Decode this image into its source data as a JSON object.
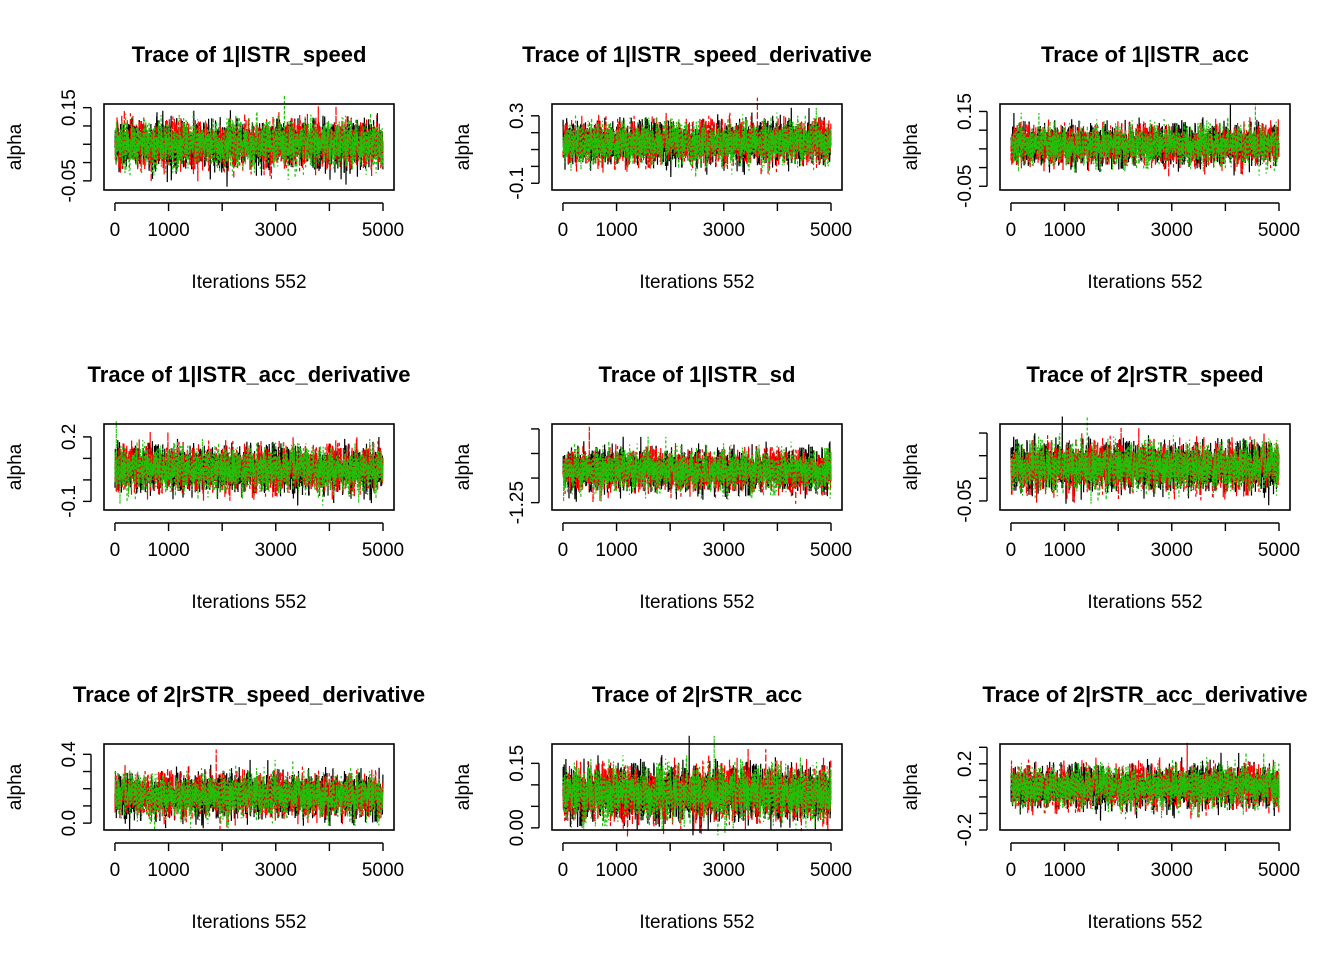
{
  "chart_data": [
    {
      "type": "line",
      "title": "Trace of 1|lSTR_speed",
      "xlabel": "Iterations 552",
      "ylabel": "alpha",
      "xlim": [
        1,
        5000
      ],
      "xticks": [
        0,
        1000,
        2000,
        3000,
        4000,
        5000
      ],
      "xticklabels": [
        "0",
        "1000",
        "",
        "3000",
        "",
        "5000"
      ],
      "ylim": [
        -0.075,
        0.16
      ],
      "yticks": [
        -0.05,
        0,
        0.05,
        0.1,
        0.15
      ],
      "yticklabels": [
        "-0.05",
        "",
        "",
        "",
        "0.15"
      ],
      "chains": 3,
      "mean": 0.05,
      "sd": 0.03
    },
    {
      "type": "line",
      "title": "Trace of 1|lSTR_speed_derivative",
      "xlabel": "Iterations 552",
      "ylabel": "alpha",
      "xlim": [
        1,
        5000
      ],
      "xticks": [
        0,
        1000,
        2000,
        3000,
        4000,
        5000
      ],
      "xticklabels": [
        "0",
        "1000",
        "",
        "3000",
        "",
        "5000"
      ],
      "ylim": [
        -0.14,
        0.37
      ],
      "yticks": [
        -0.1,
        0,
        0.1,
        0.2,
        0.3
      ],
      "yticklabels": [
        "-0.1",
        "",
        "",
        "",
        "0.3"
      ],
      "chains": 3,
      "mean": 0.14,
      "sd": 0.06
    },
    {
      "type": "line",
      "title": "Trace of 1|lSTR_acc",
      "xlabel": "Iterations 552",
      "ylabel": "alpha",
      "xlim": [
        1,
        5000
      ],
      "xticks": [
        0,
        1000,
        2000,
        3000,
        4000,
        5000
      ],
      "xticklabels": [
        "0",
        "1000",
        "",
        "3000",
        "",
        "5000"
      ],
      "ylim": [
        -0.06,
        0.17
      ],
      "yticks": [
        -0.05,
        0,
        0.05,
        0.1,
        0.15
      ],
      "yticklabels": [
        "-0.05",
        "",
        "",
        "",
        "0.15"
      ],
      "chains": 3,
      "mean": 0.06,
      "sd": 0.025
    },
    {
      "type": "line",
      "title": "Trace of 1|lSTR_acc_derivative",
      "xlabel": "Iterations 552",
      "ylabel": "alpha",
      "xlim": [
        1,
        5000
      ],
      "xticks": [
        0,
        1000,
        2000,
        3000,
        4000,
        5000
      ],
      "xticklabels": [
        "0",
        "1000",
        "",
        "3000",
        "",
        "5000"
      ],
      "ylim": [
        -0.14,
        0.26
      ],
      "yticks": [
        -0.1,
        0,
        0.1,
        0.2
      ],
      "yticklabels": [
        "-0.1",
        "",
        "",
        "0.2"
      ],
      "chains": 3,
      "mean": 0.05,
      "sd": 0.05
    },
    {
      "type": "line",
      "title": "Trace of 1|lSTR_sd",
      "xlabel": "Iterations 552",
      "ylabel": "alpha",
      "xlim": [
        1,
        5000
      ],
      "xticks": [
        0,
        1000,
        2000,
        3000,
        4000,
        5000
      ],
      "xticklabels": [
        "0",
        "1000",
        "",
        "3000",
        "",
        "5000"
      ],
      "ylim": [
        -1.28,
        -0.93
      ],
      "yticks": [
        -1.25,
        -1.15,
        -1.05,
        -0.95
      ],
      "yticklabels": [
        "-1.25",
        "",
        "",
        ""
      ],
      "chains": 3,
      "mean": -1.12,
      "sd": 0.04
    },
    {
      "type": "line",
      "title": "Trace of 2|rSTR_speed",
      "xlabel": "Iterations 552",
      "ylabel": "alpha",
      "xlim": [
        1,
        5000
      ],
      "xticks": [
        0,
        1000,
        2000,
        3000,
        4000,
        5000
      ],
      "xticklabels": [
        "0",
        "1000",
        "",
        "3000",
        "",
        "5000"
      ],
      "ylim": [
        -0.07,
        0.12
      ],
      "yticks": [
        -0.05,
        0,
        0.05,
        0.1
      ],
      "yticklabels": [
        "-0.05",
        "",
        "",
        ""
      ],
      "chains": 3,
      "mean": 0.025,
      "sd": 0.025
    },
    {
      "type": "line",
      "title": "Trace of 2|rSTR_speed_derivative",
      "xlabel": "Iterations 552",
      "ylabel": "alpha",
      "xlim": [
        1,
        5000
      ],
      "xticks": [
        0,
        1000,
        2000,
        3000,
        4000,
        5000
      ],
      "xticklabels": [
        "0",
        "1000",
        "",
        "3000",
        "",
        "5000"
      ],
      "ylim": [
        -0.04,
        0.46
      ],
      "yticks": [
        0,
        0.1,
        0.2,
        0.3,
        0.4
      ],
      "yticklabels": [
        "0.0",
        "",
        "",
        "",
        "0.4"
      ],
      "chains": 3,
      "mean": 0.16,
      "sd": 0.06
    },
    {
      "type": "line",
      "title": "Trace of 2|rSTR_acc",
      "xlabel": "Iterations 552",
      "ylabel": "alpha",
      "xlim": [
        1,
        5000
      ],
      "xticks": [
        0,
        1000,
        2000,
        3000,
        4000,
        5000
      ],
      "xticklabels": [
        "0",
        "1000",
        "",
        "3000",
        "",
        "5000"
      ],
      "ylim": [
        -0.005,
        0.195
      ],
      "yticks": [
        0,
        0.05,
        0.1,
        0.15
      ],
      "yticklabels": [
        "0.00",
        "",
        "",
        "0.15"
      ],
      "chains": 3,
      "mean": 0.08,
      "sd": 0.03
    },
    {
      "type": "line",
      "title": "Trace of 2|rSTR_acc_derivative",
      "xlabel": "Iterations 552",
      "ylabel": "alpha",
      "xlim": [
        1,
        5000
      ],
      "xticks": [
        0,
        1000,
        2000,
        3000,
        4000,
        5000
      ],
      "xticklabels": [
        "0",
        "1000",
        "",
        "3000",
        "",
        "5000"
      ],
      "ylim": [
        -0.2,
        0.32
      ],
      "yticks": [
        -0.2,
        -0.1,
        0,
        0.1,
        0.2,
        0.3
      ],
      "yticklabels": [
        "-0.2",
        "",
        "",
        "",
        "0.2",
        ""
      ],
      "chains": 3,
      "mean": 0.06,
      "sd": 0.06
    }
  ],
  "colors": {
    "chain1": "#000000",
    "chain2": "#FF0000",
    "chain3": "#1FC10A",
    "axis": "#000000"
  }
}
